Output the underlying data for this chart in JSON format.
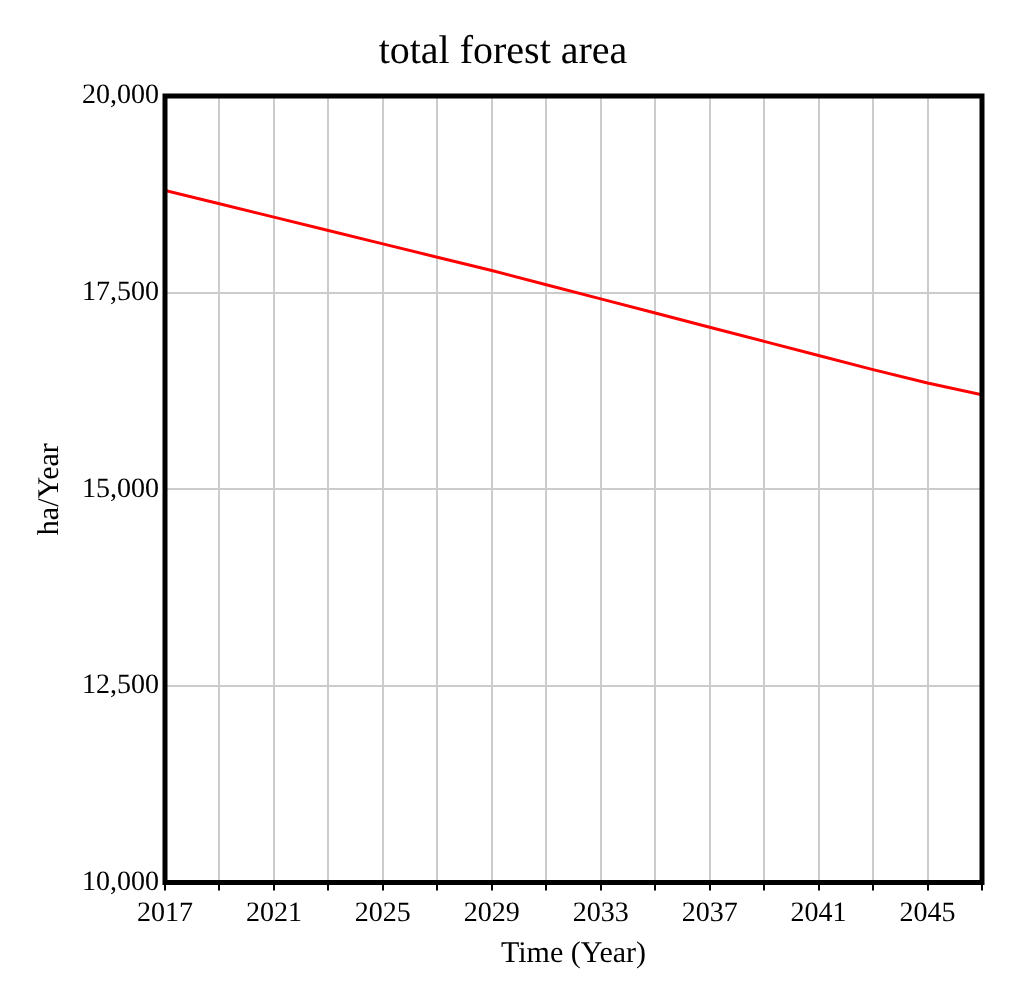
{
  "chart_data": {
    "type": "line",
    "title": "total forest area",
    "xlabel": "Time (Year)",
    "ylabel": "ha/Year",
    "x": [
      2017,
      2019,
      2021,
      2023,
      2025,
      2027,
      2029,
      2031,
      2033,
      2035,
      2037,
      2039,
      2041,
      2043,
      2045,
      2047
    ],
    "series": [
      {
        "color": "#ff0000",
        "values": [
          18800,
          18630,
          18460,
          18290,
          18120,
          17950,
          17780,
          17600,
          17420,
          17240,
          17060,
          16880,
          16700,
          16520,
          16350,
          16200
        ]
      }
    ],
    "xlim": [
      2017,
      2047
    ],
    "xticks": [
      2017,
      {
        "value": 2019,
        "label": null
      },
      2021,
      {
        "value": 2023,
        "label": null
      },
      2025,
      {
        "value": 2027,
        "label": null
      },
      2029,
      {
        "value": 2031,
        "label": null
      },
      2033,
      {
        "value": 2035,
        "label": null
      },
      2037,
      {
        "value": 2039,
        "label": null
      },
      2041,
      {
        "value": 2043,
        "label": null
      },
      2045,
      {
        "value": 2047,
        "label": null
      }
    ],
    "ylim": [
      10000,
      20000
    ],
    "yticks": [
      {
        "value": 10000,
        "label": "10,000"
      },
      {
        "value": 12500,
        "label": "12,500"
      },
      {
        "value": 15000,
        "label": "15,000"
      },
      {
        "value": 17500,
        "label": "17,500"
      },
      {
        "value": 20000,
        "label": "20,000"
      }
    ],
    "grid": true,
    "legend": false,
    "marker": "none",
    "line_style": "solid"
  }
}
